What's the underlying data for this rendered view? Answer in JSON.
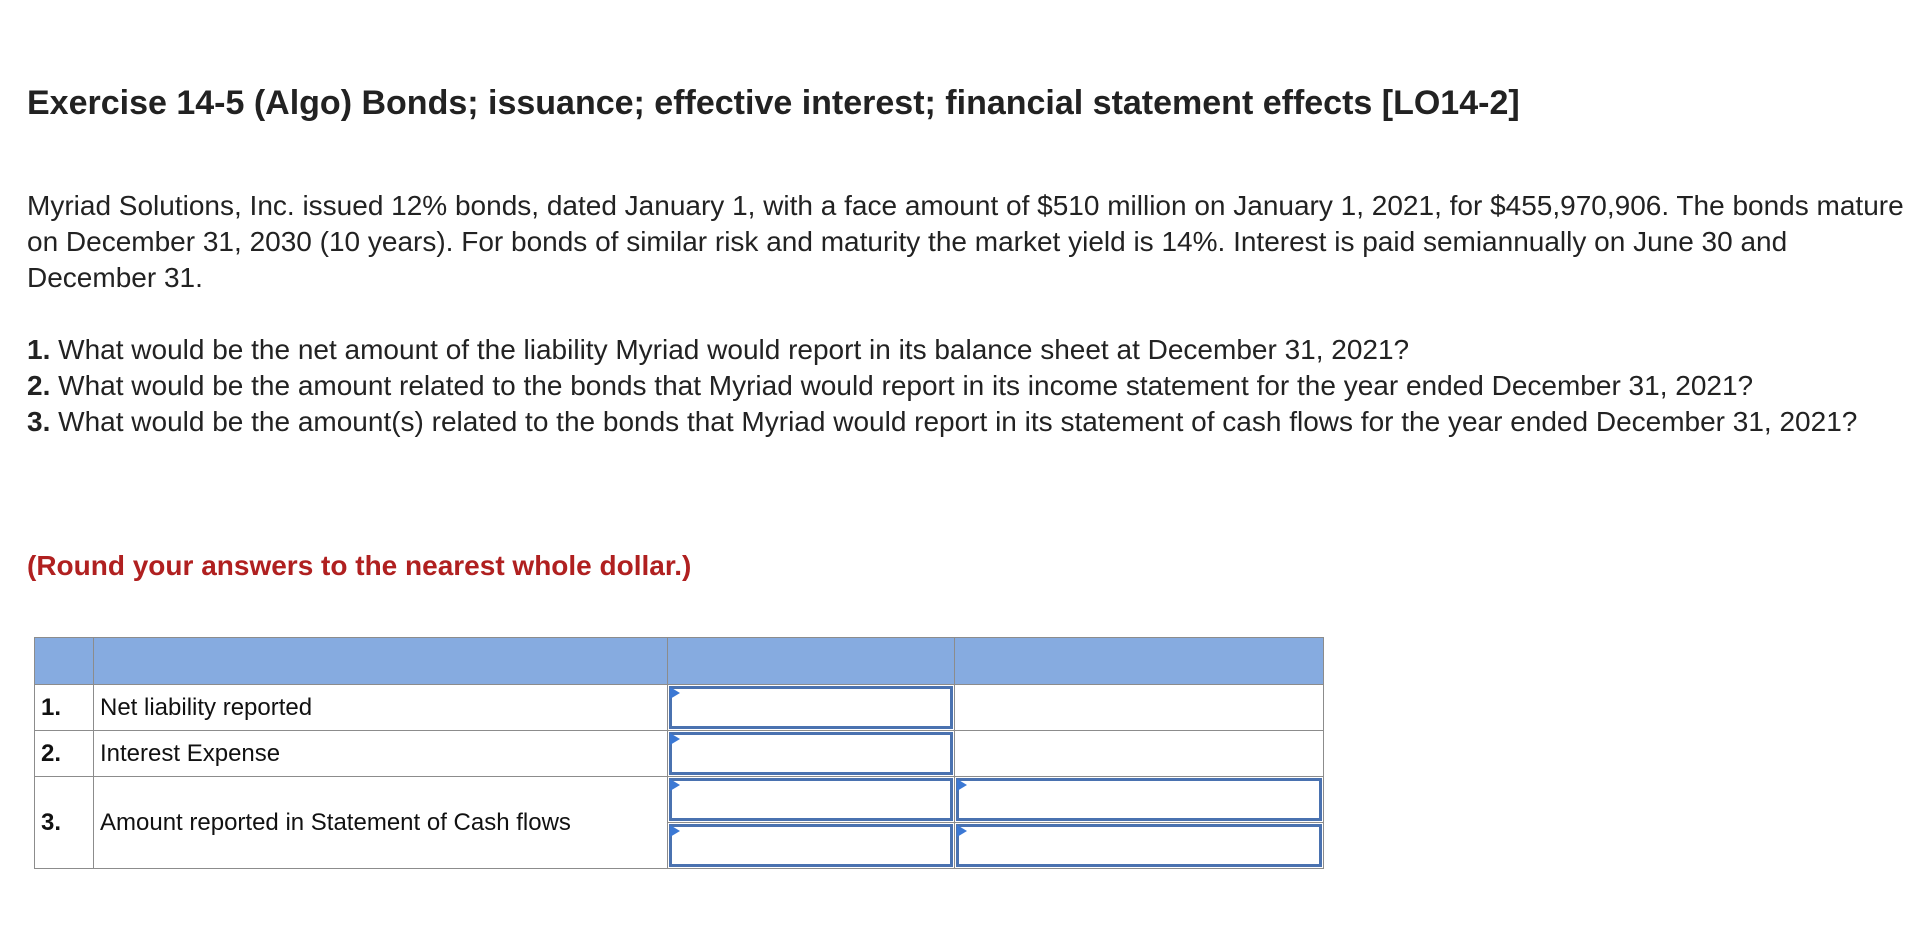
{
  "title": "Exercise 14-5 (Algo) Bonds; issuance; effective interest; financial statement effects [LO14-2]",
  "intro": "Myriad Solutions, Inc. issued 12% bonds, dated January 1, with a face amount of $510 million on January 1, 2021, for $455,970,906. The bonds mature on December 31, 2030 (10 years). For bonds of similar risk and maturity the market yield is 14%. Interest is paid semiannually on June 30 and December 31.",
  "questions": [
    {
      "num": "1.",
      "text": "What would be the net amount of the liability Myriad would report in its balance sheet at December 31, 2021?"
    },
    {
      "num": "2.",
      "text": "What would be the amount related to the bonds that Myriad would report in its income statement for the year ended December 31, 2021?"
    },
    {
      "num": "3.",
      "text": "What would be the amount(s) related to the bonds that Myriad would report in its statement of cash flows for the year ended December 31, 2021?"
    }
  ],
  "round_note": "(Round your answers to the nearest whole dollar.)",
  "table": {
    "header": [
      "",
      "",
      "",
      ""
    ],
    "rows": [
      {
        "num": "1.",
        "label": "Net liability reported",
        "value_a": "",
        "value_b": ""
      },
      {
        "num": "2.",
        "label": "Interest Expense",
        "value_a": "",
        "value_b": ""
      },
      {
        "num": "3.",
        "label": "Amount reported in Statement of Cash flows",
        "value_a_1": "",
        "value_b_1": "",
        "value_a_2": "",
        "value_b_2": ""
      }
    ]
  },
  "colors": {
    "header_bg": "#86abe0",
    "note_red": "#b02020",
    "input_border": "#4a72b0",
    "input_marker": "#3b78d4"
  }
}
